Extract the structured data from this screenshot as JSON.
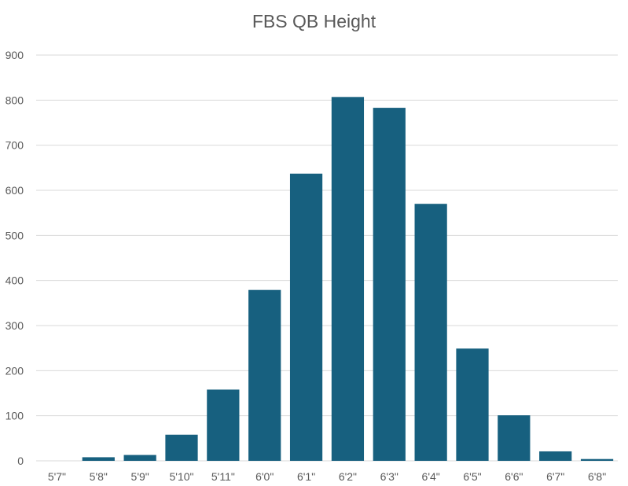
{
  "chart_data": {
    "type": "bar",
    "title": "FBS QB Height",
    "xlabel": "",
    "ylabel": "",
    "categories": [
      "5'7\"",
      "5'8\"",
      "5'9\"",
      "5'10\"",
      "5'11\"",
      "6'0\"",
      "6'1\"",
      "6'2\"",
      "6'3\"",
      "6'4\"",
      "6'5\"",
      "6'6\"",
      "6'7\"",
      "6'8\""
    ],
    "values": [
      0,
      8,
      13,
      58,
      158,
      379,
      637,
      807,
      783,
      570,
      249,
      101,
      21,
      4
    ],
    "ylim": [
      0,
      900
    ],
    "yticks": [
      0,
      100,
      200,
      300,
      400,
      500,
      600,
      700,
      800,
      900
    ],
    "grid": true,
    "legend": "none",
    "bar_color": "#17607f",
    "grid_color": "#d9d9d9",
    "text_color": "#595959"
  }
}
